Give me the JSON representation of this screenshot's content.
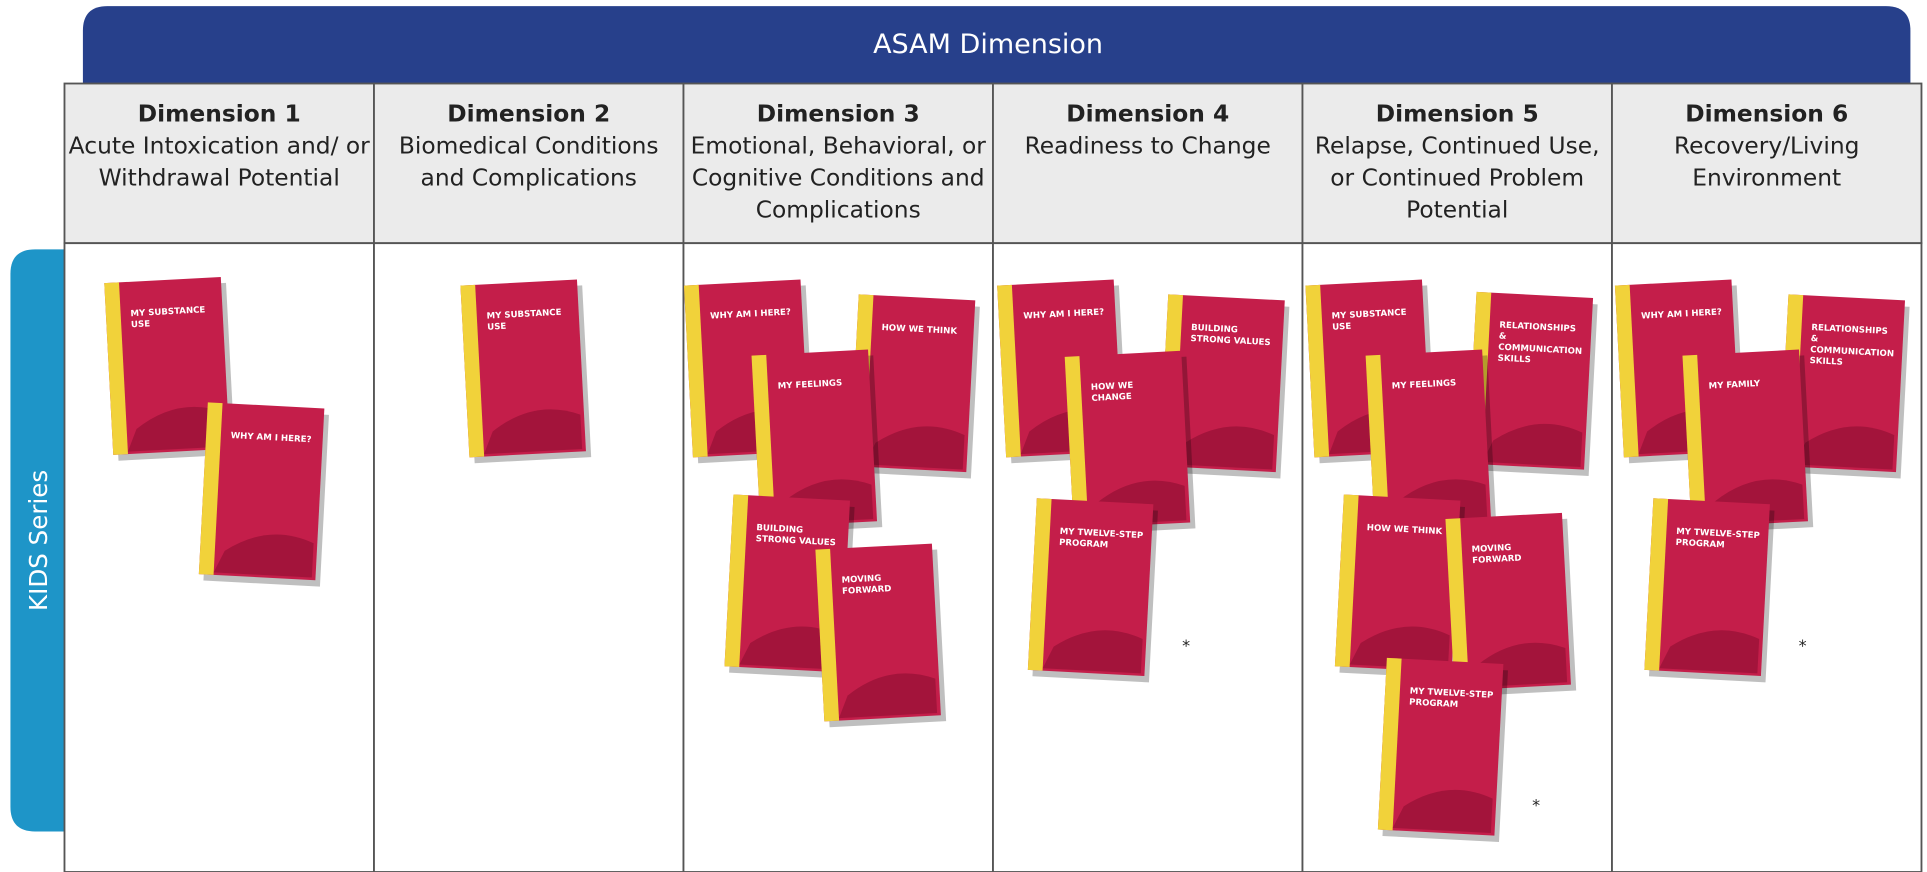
{
  "header": "ASAM Dimension",
  "side_label": "KIDS Series",
  "columns": [
    {
      "title": "Dimension 1",
      "description": "Acute Intoxication and/ or Withdrawal Potential",
      "books": [
        {
          "title": "MY SUBSTANCE USE"
        },
        {
          "title": "WHY AM I HERE?"
        }
      ]
    },
    {
      "title": "Dimension 2",
      "description": "Biomedical Conditions and Complications",
      "books": [
        {
          "title": "MY SUBSTANCE USE"
        }
      ]
    },
    {
      "title": "Dimension 3",
      "description": "Emotional, Behavioral, or Cognitive Conditions and Complications",
      "books": [
        {
          "title": "WHY AM I HERE?"
        },
        {
          "title": "HOW WE THINK"
        },
        {
          "title": "MY FEELINGS"
        },
        {
          "title": "BUILDING STRONG VALUES"
        },
        {
          "title": "MOVING FORWARD"
        }
      ]
    },
    {
      "title": "Dimension 4",
      "description": "Readiness to Change",
      "books": [
        {
          "title": "WHY AM I HERE?"
        },
        {
          "title": "BUILDING STRONG VALUES"
        },
        {
          "title": "HOW WE CHANGE"
        },
        {
          "title": "MY TWELVE-STEP PROGRAM",
          "note": "*"
        }
      ]
    },
    {
      "title": "Dimension 5",
      "description": "Relapse, Continued Use, or Continued Problem Potential",
      "books": [
        {
          "title": "MY SUBSTANCE USE"
        },
        {
          "title": "RELATIONSHIPS & COMMUNICATION SKILLS"
        },
        {
          "title": "MY FEELINGS"
        },
        {
          "title": "HOW WE THINK"
        },
        {
          "title": "MOVING FORWARD"
        },
        {
          "title": "MY TWELVE-STEP PROGRAM",
          "note": "*"
        }
      ]
    },
    {
      "title": "Dimension 6",
      "description": "Recovery/Living Environment",
      "books": [
        {
          "title": "WHY AM I HERE?"
        },
        {
          "title": "RELATIONSHIPS & COMMUNICATION SKILLS"
        },
        {
          "title": "MY FAMILY"
        },
        {
          "title": "MY TWELVE-STEP PROGRAM",
          "note": "*"
        }
      ]
    }
  ]
}
